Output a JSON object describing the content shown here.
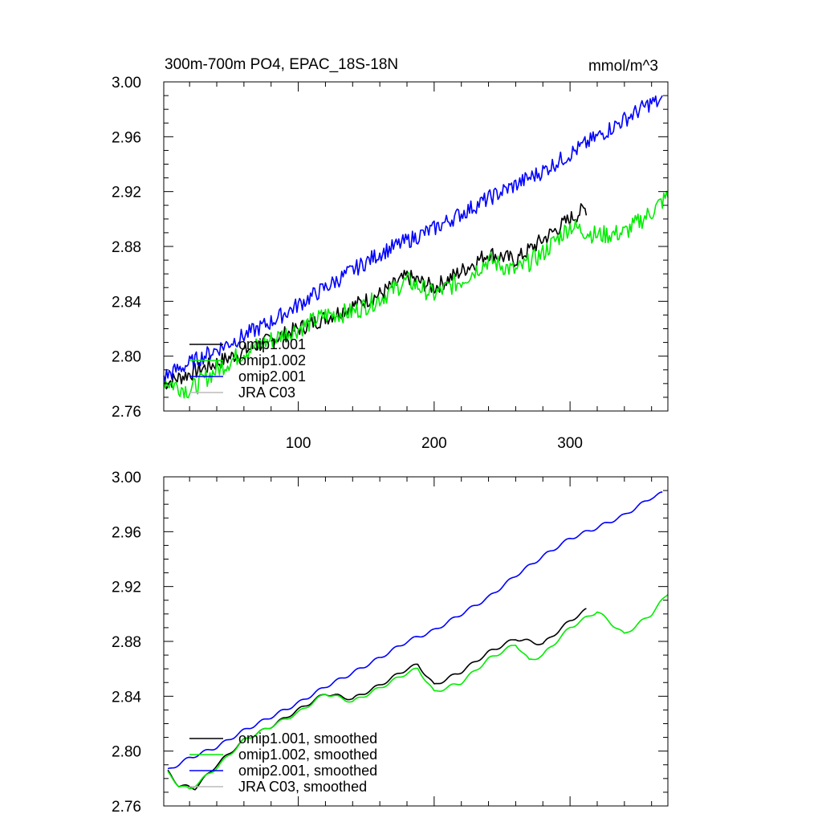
{
  "chart_data": [
    {
      "type": "line",
      "title": "300m-700m PO4, EPAC_18S-18N",
      "units": "mmol/m^3",
      "xlim": [
        1,
        372
      ],
      "ylim": [
        2.76,
        3.0
      ],
      "yticks": [
        "2.76",
        "2.80",
        "2.84",
        "2.88",
        "2.92",
        "2.96",
        "3.00"
      ],
      "xticks": [
        "100",
        "200",
        "300"
      ],
      "legend_position": "lower-left",
      "series": [
        {
          "name": "omip1.001",
          "color": "#000000",
          "x": [
            1,
            40,
            80,
            120,
            160,
            180,
            200,
            220,
            240,
            260,
            280,
            300,
            312
          ],
          "y": [
            2.78,
            2.795,
            2.812,
            2.828,
            2.845,
            2.858,
            2.85,
            2.862,
            2.875,
            2.87,
            2.885,
            2.9,
            2.908
          ],
          "noise": 0.006
        },
        {
          "name": "omip1.002",
          "color": "#00ee00",
          "x": [
            1,
            20,
            40,
            60,
            80,
            100,
            120,
            140,
            160,
            180,
            200,
            220,
            240,
            260,
            280,
            300,
            320,
            340,
            360,
            372
          ],
          "y": [
            2.782,
            2.775,
            2.79,
            2.803,
            2.812,
            2.82,
            2.83,
            2.832,
            2.842,
            2.855,
            2.845,
            2.855,
            2.87,
            2.862,
            2.875,
            2.895,
            2.888,
            2.89,
            2.905,
            2.917
          ],
          "noise": 0.007
        },
        {
          "name": "omip2.001",
          "color": "#0000ff",
          "x": [
            1,
            40,
            80,
            120,
            160,
            200,
            240,
            280,
            320,
            360,
            368
          ],
          "y": [
            2.785,
            2.805,
            2.825,
            2.85,
            2.875,
            2.893,
            2.915,
            2.935,
            2.96,
            2.985,
            2.985
          ],
          "noise": 0.006
        },
        {
          "name": "JRA C03",
          "color": "#bbbbbb",
          "x": [],
          "y": [],
          "noise": 0
        }
      ]
    },
    {
      "type": "line",
      "title": "",
      "units": "",
      "xlim": [
        1,
        372
      ],
      "ylim": [
        2.76,
        3.0
      ],
      "yticks": [
        "2.76",
        "2.80",
        "2.84",
        "2.88",
        "2.92",
        "2.96",
        "3.00"
      ],
      "xticks": [],
      "legend_position": "lower-left",
      "series": [
        {
          "name": "omip1.001, smoothed",
          "color": "#000000",
          "x": [
            4,
            12,
            24,
            40,
            60,
            80,
            100,
            120,
            140,
            160,
            180,
            188,
            200,
            220,
            240,
            260,
            280,
            300,
            312
          ],
          "y": [
            2.785,
            2.775,
            2.773,
            2.79,
            2.808,
            2.818,
            2.83,
            2.842,
            2.838,
            2.848,
            2.86,
            2.863,
            2.848,
            2.858,
            2.872,
            2.882,
            2.878,
            2.895,
            2.903
          ]
        },
        {
          "name": "omip1.002, smoothed",
          "color": "#00ee00",
          "x": [
            4,
            12,
            20,
            40,
            60,
            80,
            100,
            120,
            140,
            160,
            180,
            188,
            200,
            220,
            240,
            260,
            270,
            280,
            300,
            320,
            340,
            360,
            372
          ],
          "y": [
            2.784,
            2.775,
            2.772,
            2.788,
            2.808,
            2.818,
            2.828,
            2.842,
            2.836,
            2.846,
            2.857,
            2.86,
            2.843,
            2.85,
            2.867,
            2.878,
            2.866,
            2.87,
            2.89,
            2.902,
            2.885,
            2.9,
            2.915
          ]
        },
        {
          "name": "omip2.001, smoothed",
          "color": "#0000ff",
          "x": [
            4,
            20,
            40,
            60,
            80,
            100,
            120,
            140,
            160,
            180,
            200,
            220,
            240,
            260,
            280,
            300,
            320,
            340,
            360,
            368
          ],
          "y": [
            2.786,
            2.795,
            2.803,
            2.815,
            2.825,
            2.835,
            2.847,
            2.857,
            2.868,
            2.88,
            2.888,
            2.9,
            2.912,
            2.928,
            2.942,
            2.955,
            2.963,
            2.972,
            2.985,
            2.988
          ]
        },
        {
          "name": "JRA C03, smoothed",
          "color": "#bbbbbb",
          "x": [],
          "y": []
        }
      ]
    }
  ]
}
